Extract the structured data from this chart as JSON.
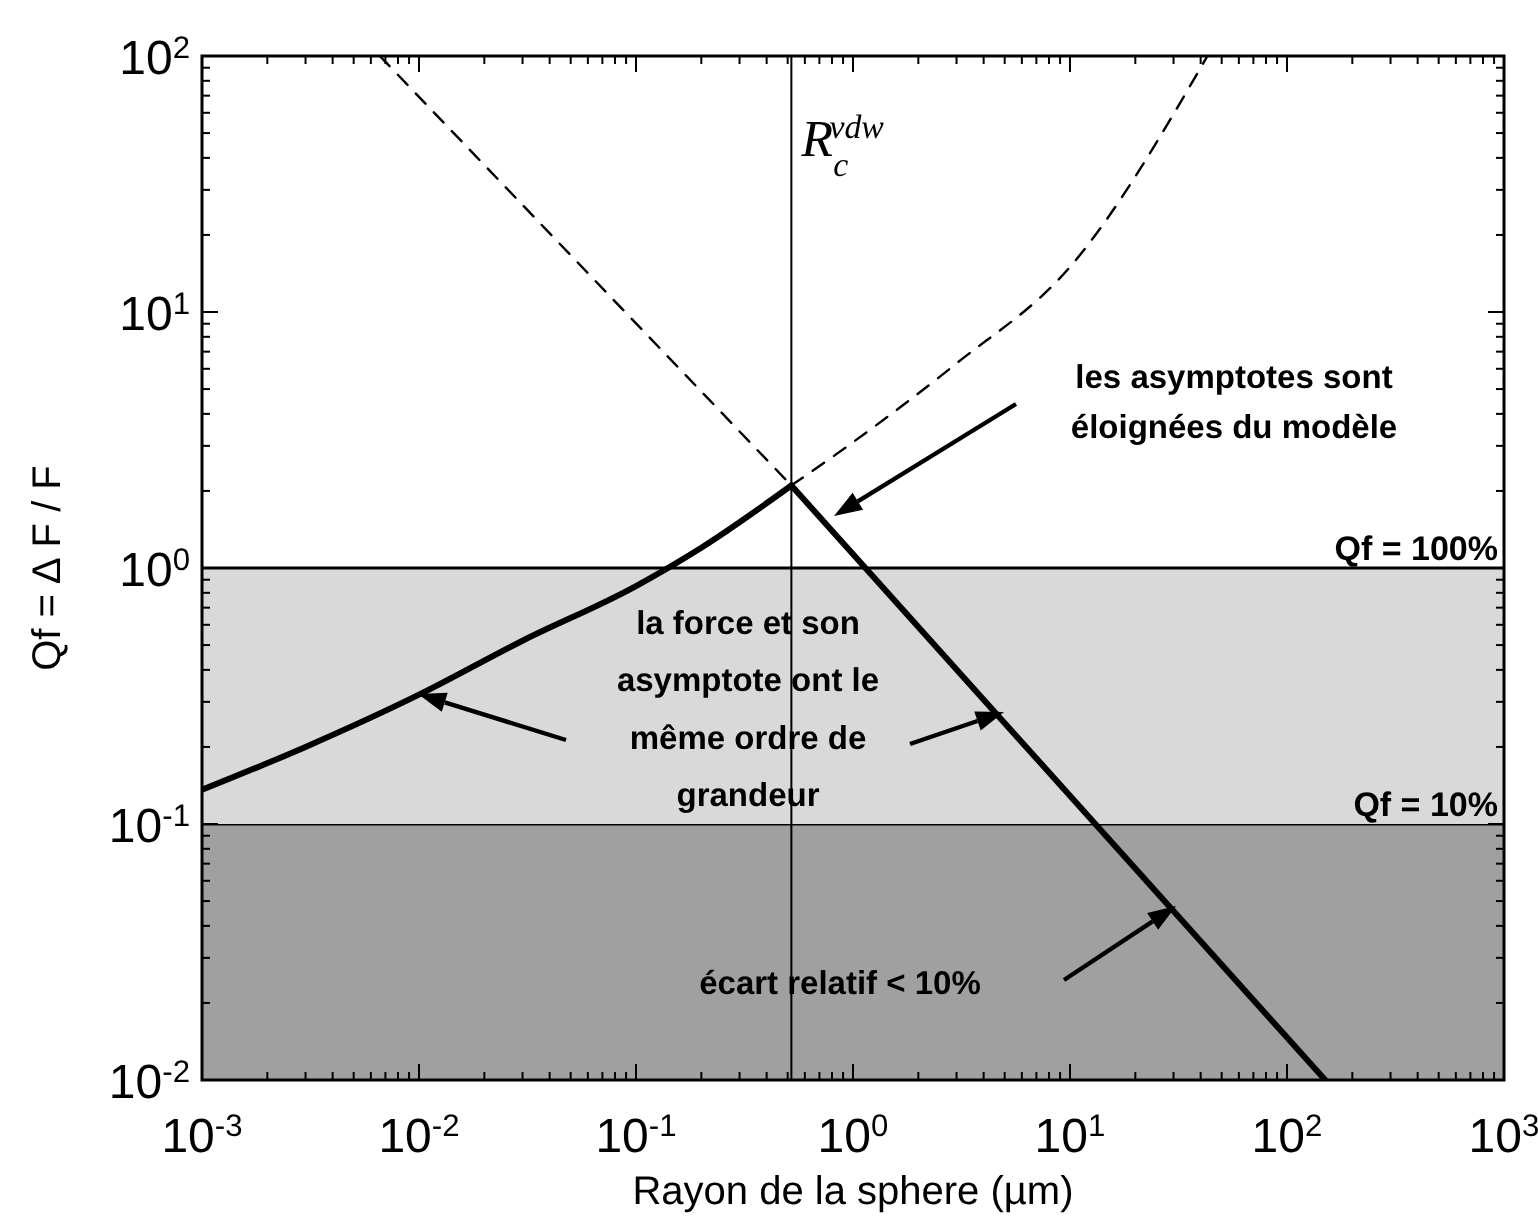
{
  "chart_data": {
    "type": "line",
    "xlabel": "Rayon de la sphere (µm)",
    "ylabel": "Qf = ∆ F / F",
    "log": "xy",
    "xlim": [
      0.001,
      1000
    ],
    "ylim": [
      0.01,
      100
    ],
    "xticks": [
      {
        "value": 0.001,
        "label": "10$^{-3}$"
      },
      {
        "value": 0.01,
        "label": "10$^{-2}$"
      },
      {
        "value": 0.1,
        "label": "10$^{-1}$"
      },
      {
        "value": 1,
        "label": "10$^{0}$"
      },
      {
        "value": 10,
        "label": "10$^{1}$"
      },
      {
        "value": 100,
        "label": "10$^{2}$"
      },
      {
        "value": 1000,
        "label": "10$^{3}$"
      }
    ],
    "yticks": [
      {
        "value": 0.01,
        "label": "10$^{-2}$"
      },
      {
        "value": 0.1,
        "label": "10$^{-1}$"
      },
      {
        "value": 1,
        "label": "10$^{0}$"
      },
      {
        "value": 10,
        "label": "10$^{1}$"
      },
      {
        "value": 100,
        "label": "10$^{2}$"
      }
    ],
    "bands": [
      {
        "axis": "y",
        "from": 0.01,
        "to": 0.1,
        "label": "Qf = 10%",
        "color": "#a0a0a0"
      },
      {
        "axis": "y",
        "from": 0.1,
        "to": 1,
        "label": "Qf = 100%",
        "color": "#d9d9d9"
      }
    ],
    "ref_lines": [
      {
        "axis": "x",
        "value": 0.52,
        "label": "R$_{c}$$^{vdw}$"
      }
    ],
    "series": [
      {
        "color": "#000000",
        "line_style": "solid",
        "x": [
          0.001,
          0.003,
          0.01,
          0.03,
          0.1,
          0.2,
          0.52
        ],
        "values": [
          0.136,
          0.2,
          0.32,
          0.52,
          0.85,
          1.2,
          2.1
        ]
      },
      {
        "color": "#000000",
        "line_style": "solid",
        "x": [
          0.52,
          150
        ],
        "values": [
          2.1,
          0.01
        ]
      },
      {
        "color": "#000000",
        "line_style": "dashed",
        "x": [
          0.0066,
          0.52
        ],
        "values": [
          100,
          2.1
        ]
      },
      {
        "color": "#000000",
        "line_style": "dashed",
        "x": [
          0.52,
          1,
          3,
          10,
          43
        ],
        "values": [
          2.1,
          3.1,
          6.3,
          15,
          100
        ]
      }
    ],
    "annotations": [
      "les asymptotes sont\néloignées du modèle",
      "la force et son\nasymptote ont le\nmême ordre de\ngrandeur",
      "écart relatif < 10%"
    ]
  }
}
